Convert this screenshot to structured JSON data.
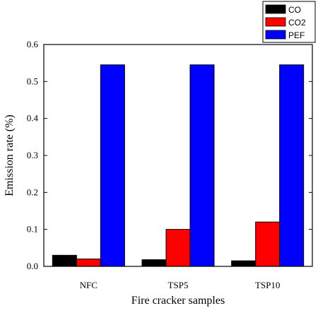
{
  "chart_data": {
    "type": "bar",
    "categories": [
      "NFC",
      "TSP5",
      "TSP10"
    ],
    "series": [
      {
        "name": "CO",
        "color": "#000000",
        "values": [
          0.03,
          0.018,
          0.015
        ]
      },
      {
        "name": "CO2",
        "color": "#ff0000",
        "values": [
          0.02,
          0.1,
          0.12
        ]
      },
      {
        "name": "PEF",
        "color": "#0000ff",
        "values": [
          0.545,
          0.545,
          0.545
        ]
      }
    ],
    "xlabel": "Fire cracker samples",
    "ylabel": "Emission rate (%)",
    "ylim": [
      0,
      0.6
    ],
    "yticks": [
      0.0,
      0.1,
      0.2,
      0.3,
      0.4,
      0.5,
      0.6
    ],
    "ytick_labels": [
      "0.0",
      "0.1",
      "0.2",
      "0.3",
      "0.4",
      "0.5",
      "0.6"
    ],
    "grid": false,
    "legend_position": "top-right, above plot"
  }
}
